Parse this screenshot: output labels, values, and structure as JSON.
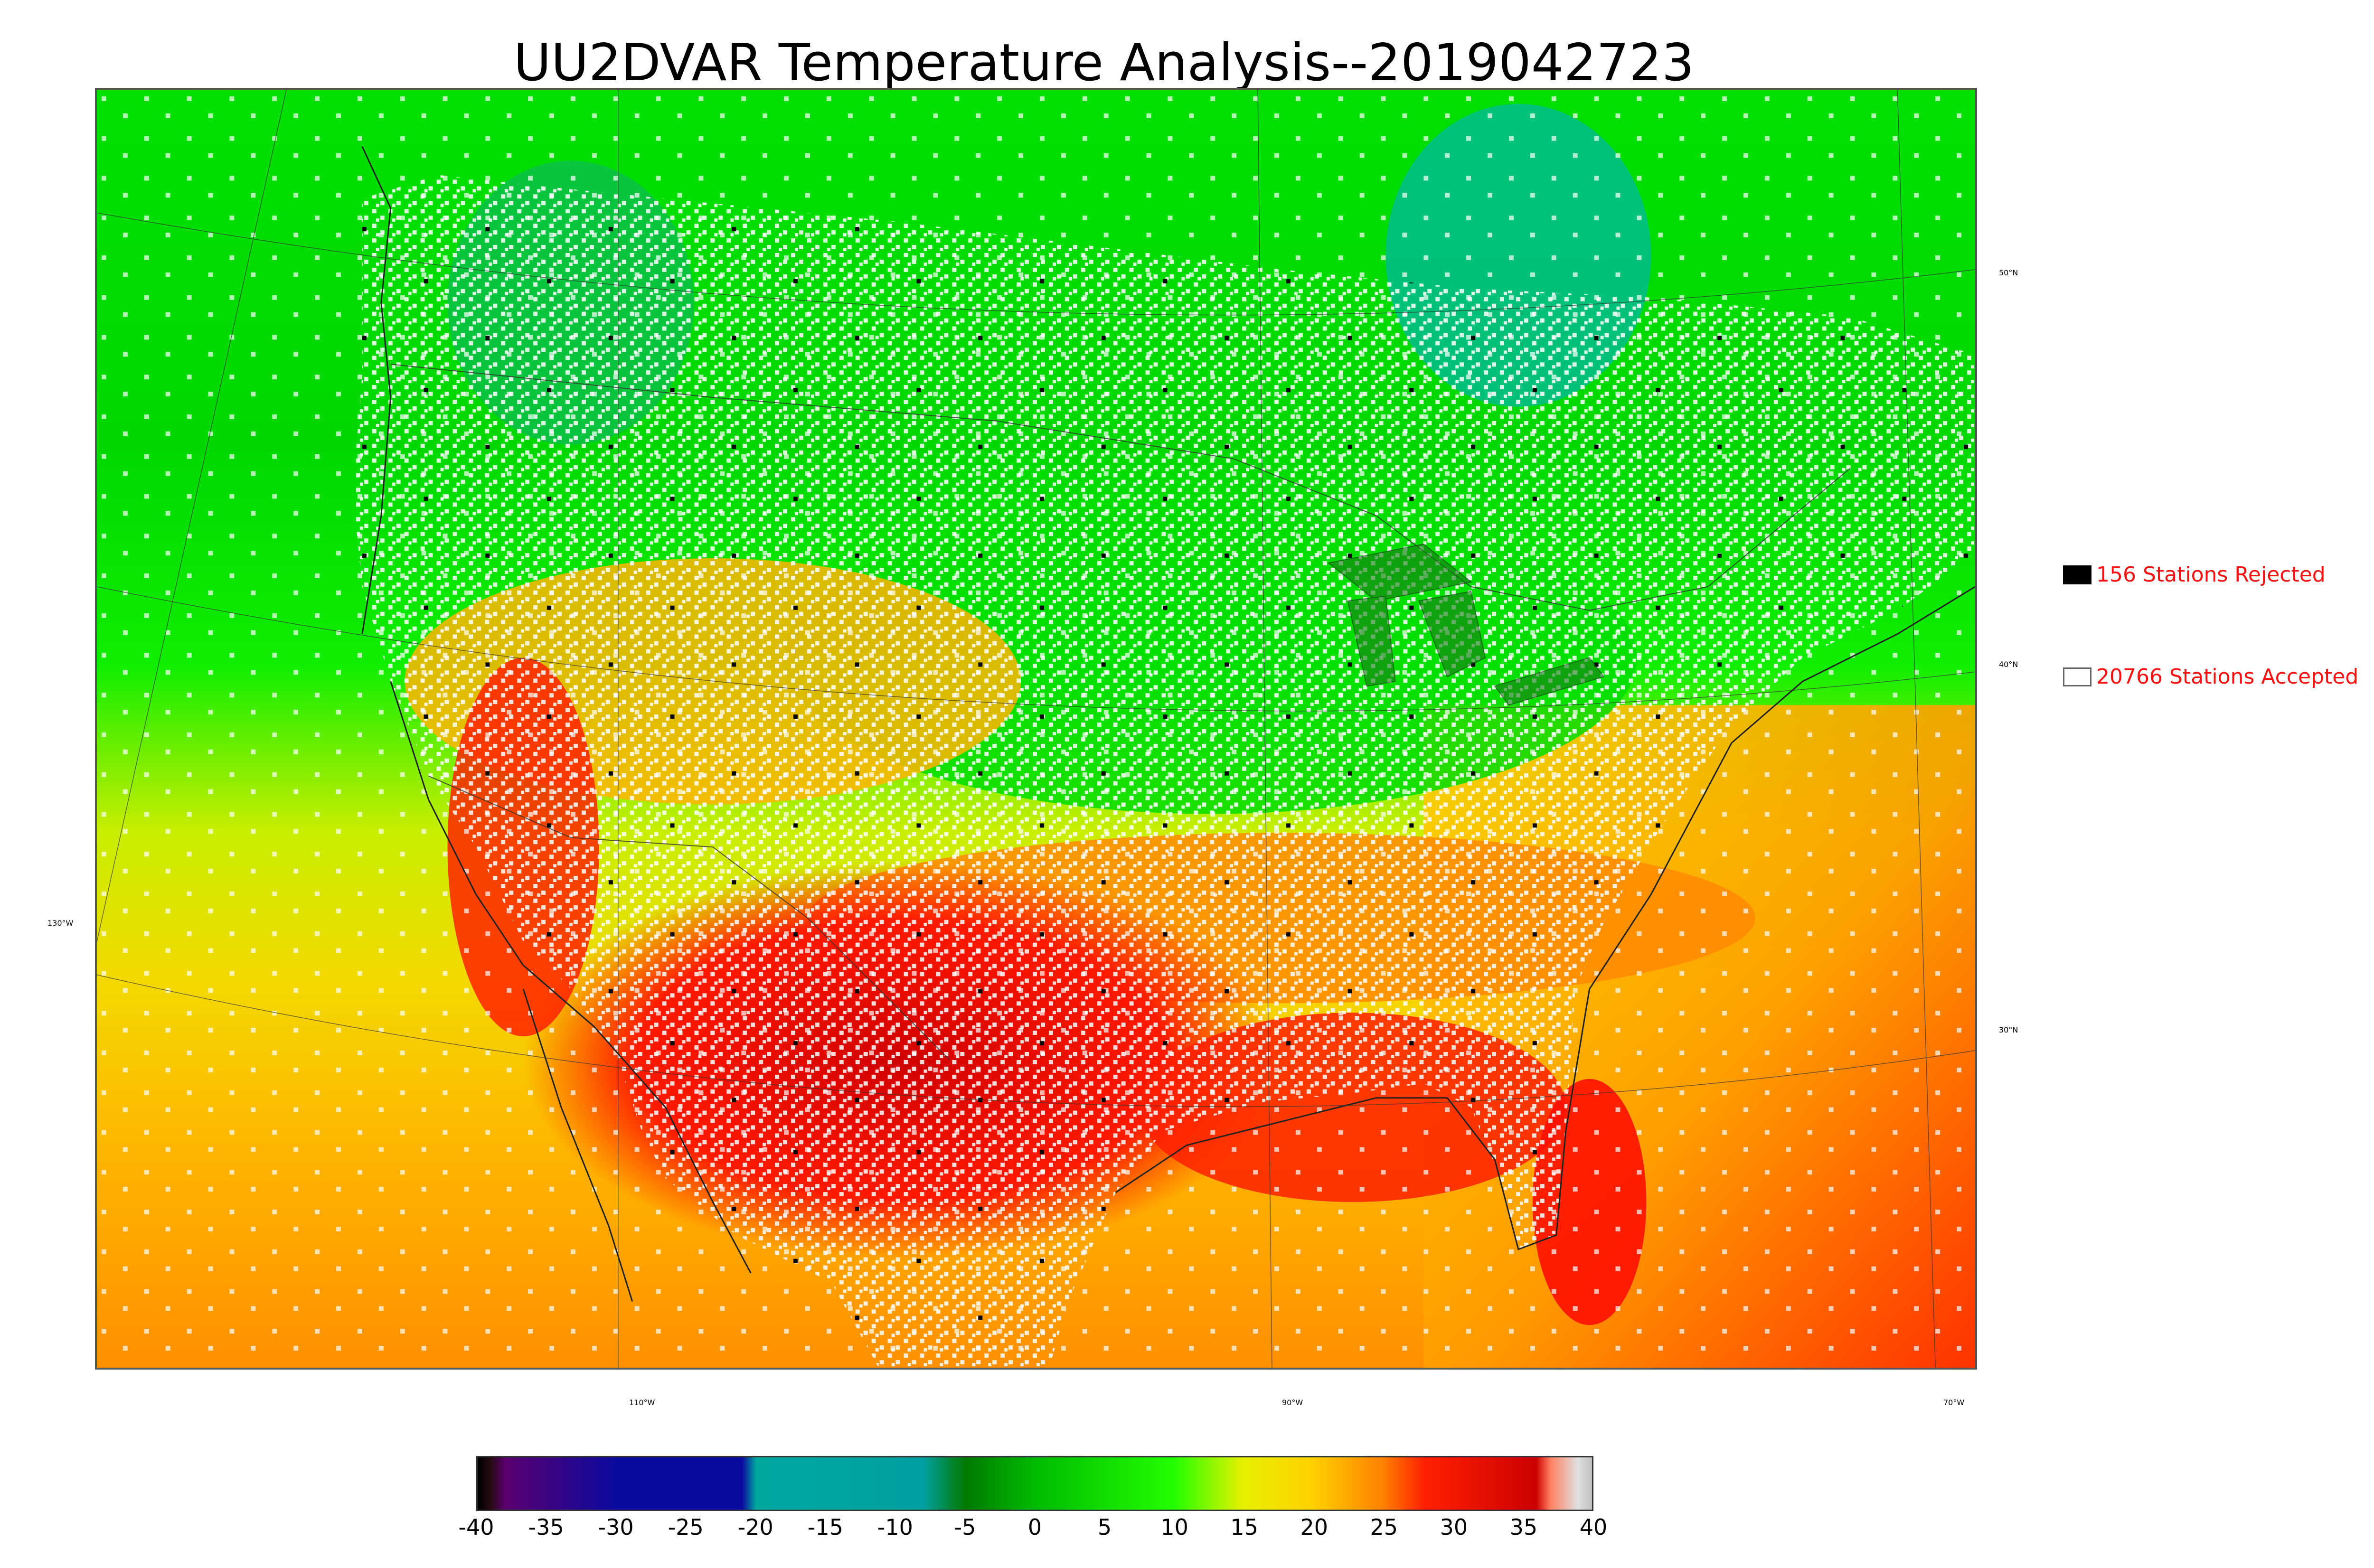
{
  "title": "UU2DVAR Temperature Analysis--2019042723",
  "graticule_labels": {
    "lat": [
      "50°N",
      "40°N",
      "30°N"
    ],
    "lon_left": "130°W",
    "lon_bottom": [
      "110°W",
      "90°W",
      "70°W"
    ]
  },
  "legend": {
    "rejected": {
      "label": "156 Stations Rejected",
      "count": 156,
      "color": "#000000"
    },
    "accepted": {
      "label": "20766 Stations Accepted",
      "count": 20766,
      "color": "#ffffff"
    }
  },
  "colorbar": {
    "ticks": [
      "-40",
      "-35",
      "-30",
      "-25",
      "-20",
      "-15",
      "-10",
      "-5",
      "0",
      "5",
      "10",
      "15",
      "20",
      "25",
      "30",
      "35",
      "40"
    ],
    "range": [
      -40,
      40
    ],
    "stops": [
      {
        "v": -40,
        "c": "#000000"
      },
      {
        "v": -39,
        "c": "#2a0a14"
      },
      {
        "v": -38,
        "c": "#5a0070"
      },
      {
        "v": -30,
        "c": "#0a0aa0"
      },
      {
        "v": -21,
        "c": "#0a0aa0"
      },
      {
        "v": -20,
        "c": "#00a8a0"
      },
      {
        "v": -8,
        "c": "#00a0a0"
      },
      {
        "v": -5,
        "c": "#007a00"
      },
      {
        "v": 0,
        "c": "#00bb00"
      },
      {
        "v": 10,
        "c": "#22ff00"
      },
      {
        "v": 15,
        "c": "#e8f000"
      },
      {
        "v": 20,
        "c": "#ffd000"
      },
      {
        "v": 25,
        "c": "#ff8000"
      },
      {
        "v": 28,
        "c": "#ff2000"
      },
      {
        "v": 36,
        "c": "#cc0000"
      },
      {
        "v": 37,
        "c": "#ff8060"
      },
      {
        "v": 39,
        "c": "#e0e0e0"
      },
      {
        "v": 40,
        "c": "#c0c0c0"
      }
    ]
  }
}
